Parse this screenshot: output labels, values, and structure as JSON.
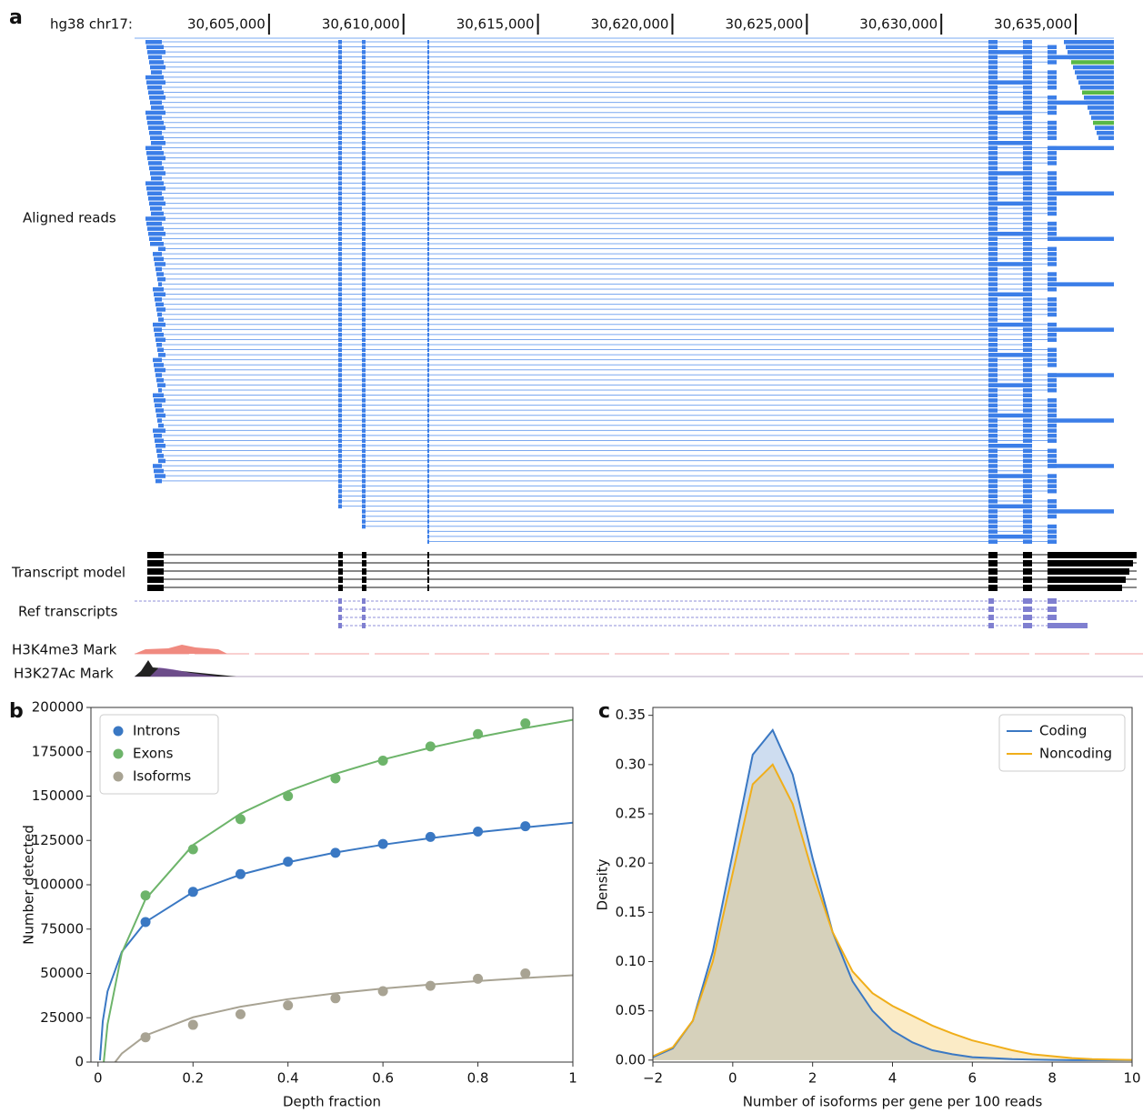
{
  "chart_data": [
    {
      "type": "genome-browser",
      "panel": "a",
      "assembly_label": "hg38 chr17:",
      "xlim": [
        30600000,
        30637500
      ],
      "xticks": [
        {
          "value": 30605000,
          "label": "30,605,000"
        },
        {
          "value": 30610000,
          "label": "30,610,000"
        },
        {
          "value": 30615000,
          "label": "30,615,000"
        },
        {
          "value": 30620000,
          "label": "30,620,000"
        },
        {
          "value": 30625000,
          "label": "30,625,000"
        },
        {
          "value": 30630000,
          "label": "30,630,000"
        },
        {
          "value": 30635000,
          "label": "30,635,000"
        }
      ],
      "tracks": [
        "Aligned reads",
        "Transcript model",
        "Ref transcripts",
        "H3K4me3 Mark",
        "H3K27Ac Mark"
      ]
    },
    {
      "type": "scatter",
      "panel": "b",
      "xlabel": "Depth fraction",
      "ylabel": "Number detected",
      "x": [
        0.1,
        0.2,
        0.3,
        0.4,
        0.5,
        0.6,
        0.7,
        0.8,
        0.9
      ],
      "series": [
        {
          "name": "Introns",
          "color": "#3a78c3",
          "values": [
            79000,
            96000,
            106000,
            113000,
            118000,
            123000,
            127000,
            130000,
            133000
          ]
        },
        {
          "name": "Exons",
          "color": "#6db46a",
          "values": [
            94000,
            120000,
            137000,
            150000,
            160000,
            170000,
            178000,
            185000,
            191000
          ]
        },
        {
          "name": "Isoforms",
          "color": "#a8a393",
          "values": [
            14000,
            21000,
            27000,
            32000,
            36000,
            40000,
            43000,
            47000,
            50000
          ]
        }
      ],
      "fits": [
        {
          "x": [
            0.004,
            0.01,
            0.02,
            0.05,
            0.1,
            0.2,
            0.3,
            0.4,
            0.5,
            0.6,
            0.7,
            0.8,
            0.9,
            1
          ],
          "values": [
            1000,
            23100,
            39900,
            62200,
            79000,
            95900,
            105700,
            112700,
            118200,
            122600,
            126300,
            129600,
            132400,
            135000
          ]
        },
        {
          "x": [
            0.012,
            0.02,
            0.05,
            0.1,
            0.2,
            0.3,
            0.4,
            0.5,
            0.6,
            0.7,
            0.8,
            0.9,
            1
          ],
          "values": [
            0,
            21300,
            61500,
            91900,
            122400,
            140100,
            152800,
            162600,
            170600,
            177300,
            183200,
            188400,
            193000
          ]
        },
        {
          "x": [
            0.036,
            0.05,
            0.1,
            0.2,
            0.3,
            0.4,
            0.5,
            0.6,
            0.7,
            0.8,
            0.9,
            1
          ],
          "values": [
            0,
            4800,
            15000,
            25250,
            31230,
            35480,
            38770,
            41460,
            43730,
            45710,
            47450,
            49000
          ]
        }
      ],
      "xlim": [
        -0.015,
        1
      ],
      "xticks": [
        0,
        0.2,
        0.4,
        0.6,
        0.8,
        1
      ],
      "ylim": [
        0,
        200000
      ],
      "yticks": [
        0,
        25000,
        50000,
        75000,
        100000,
        125000,
        150000,
        175000,
        200000
      ],
      "legend": "upper left"
    },
    {
      "type": "density",
      "panel": "c",
      "xlabel": "Number of isoforms per gene per 100 reads",
      "ylabel": "Density",
      "x": [
        -2,
        -1.5,
        -1,
        -0.5,
        0,
        0.5,
        1,
        1.5,
        2,
        2.5,
        3,
        3.5,
        4,
        4.5,
        5,
        5.5,
        6,
        6.5,
        7,
        7.5,
        8,
        8.5,
        9,
        9.5,
        10
      ],
      "series": [
        {
          "name": "Coding",
          "color": "#3a78c3",
          "values": [
            0.003,
            0.012,
            0.04,
            0.11,
            0.21,
            0.31,
            0.335,
            0.29,
            0.205,
            0.13,
            0.08,
            0.05,
            0.03,
            0.018,
            0.01,
            0.006,
            0.003,
            0.002,
            0.001,
            0.0005,
            0.0002,
            0,
            0,
            0,
            0
          ]
        },
        {
          "name": "Noncoding",
          "color": "#f0ae1a",
          "values": [
            0.004,
            0.013,
            0.04,
            0.1,
            0.19,
            0.28,
            0.3,
            0.26,
            0.19,
            0.13,
            0.09,
            0.068,
            0.055,
            0.045,
            0.035,
            0.027,
            0.02,
            0.015,
            0.01,
            0.006,
            0.004,
            0.002,
            0.001,
            0.0005,
            0.0002
          ]
        }
      ],
      "xlim": [
        -2,
        10
      ],
      "xticks": [
        {
          "value": -2,
          "label": "−2"
        },
        0,
        2,
        4,
        6,
        8,
        10
      ],
      "ylim": [
        -0.002,
        0.358
      ],
      "yticks": [
        {
          "value": 0,
          "label": "0.00"
        },
        {
          "value": 0.05,
          "label": "0.05"
        },
        {
          "value": 0.1,
          "label": "0.10"
        },
        {
          "value": 0.15,
          "label": "0.15"
        },
        {
          "value": 0.2,
          "label": "0.20"
        },
        {
          "value": 0.25,
          "label": "0.25"
        },
        {
          "value": 0.3,
          "label": "0.30"
        },
        {
          "value": 0.35,
          "label": "0.35"
        }
      ],
      "legend": "upper right"
    }
  ]
}
